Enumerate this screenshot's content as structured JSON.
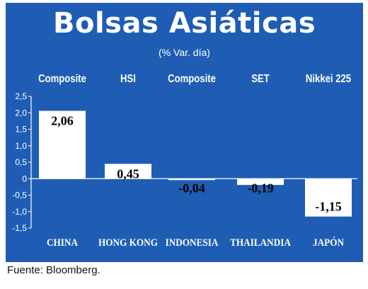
{
  "title": "Bolsas Asiáticas",
  "subtitle": "(% Var. día)",
  "source": "Fuente: Bloomberg.",
  "colors": {
    "panel": "#1f5db4",
    "bar": "#ffffff",
    "axis": "#ffffff",
    "value_text": "#000000"
  },
  "chart_data": {
    "type": "bar",
    "title": "Bolsas Asiáticas",
    "subtitle": "(% Var. día)",
    "categories": [
      "CHINA",
      "HONG KONG",
      "INDONESIA",
      "THAILANDIA",
      "JAPÓN"
    ],
    "index_names": [
      "Composite",
      "HSI",
      "Composite",
      "SET",
      "Nikkei 225"
    ],
    "values": [
      2.06,
      0.45,
      -0.04,
      -0.19,
      -1.15
    ],
    "value_labels": [
      "2,06",
      "0,45",
      "-0,04",
      "-0,19",
      "-1,15"
    ],
    "ylim": [
      -1.5,
      2.5
    ],
    "yticks": [
      2.5,
      2.0,
      1.5,
      1.0,
      0.5,
      0,
      -0.5,
      -1.0,
      -1.5
    ],
    "ytick_labels": [
      "2,5",
      "2,0",
      "1,5",
      "1,0",
      "0,5",
      "0",
      "-0,5",
      "-1,0",
      "-1,5"
    ],
    "grid": false,
    "legend": "none"
  }
}
